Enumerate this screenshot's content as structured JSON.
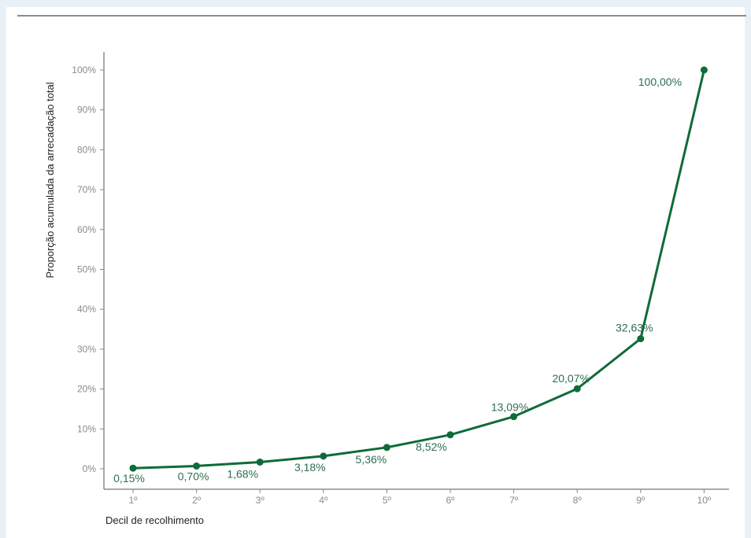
{
  "chart_data": {
    "type": "line",
    "xlabel": "Decil de recolhimento",
    "ylabel": "Proporção acumulada da arrecadação total",
    "categories": [
      "1º",
      "2º",
      "3º",
      "4º",
      "5º",
      "6º",
      "7º",
      "8º",
      "9º",
      "10º"
    ],
    "values": [
      0.15,
      0.7,
      1.68,
      3.18,
      5.36,
      8.52,
      13.09,
      20.07,
      32.63,
      100.0
    ],
    "data_labels": [
      "0,15%",
      "0,70%",
      "1,68%",
      "3,18%",
      "5,36%",
      "8,52%",
      "13,09%",
      "20,07%",
      "32,63%",
      "100,00%"
    ],
    "y_ticks": [
      "0%",
      "10%",
      "20%",
      "30%",
      "40%",
      "50%",
      "60%",
      "70%",
      "80%",
      "90%",
      "100%"
    ],
    "ylim": [
      0,
      100
    ],
    "grid": false,
    "color": "#0f6b3a"
  }
}
